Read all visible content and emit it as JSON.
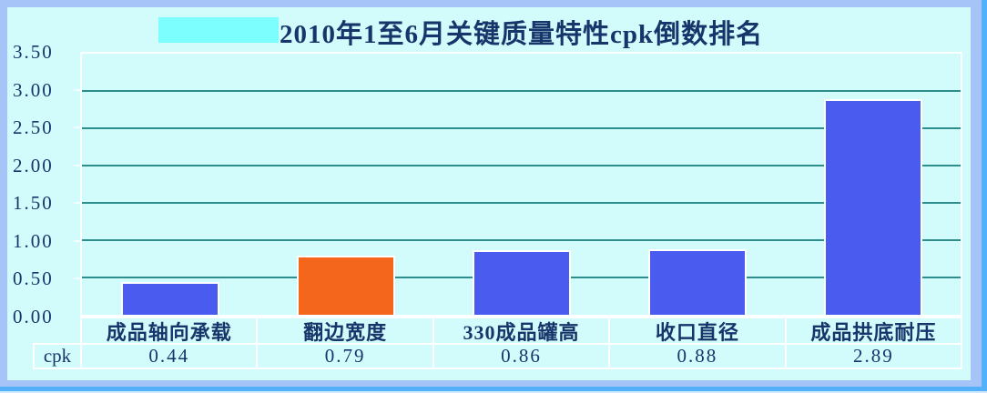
{
  "window": {
    "frame_color": "#a6c4f7",
    "panel_color": "#d2fbfb",
    "edge_accent_color": "#55b0fb"
  },
  "title": {
    "text": "2010年1至6月关键质量特性cpk倒数排名",
    "color": "#17356b",
    "highlight_color": "#7dfefe"
  },
  "chart_data": {
    "type": "bar",
    "title": "2010年1至6月关键质量特性cpk倒数排名",
    "categories": [
      "成品轴向承载",
      "翻边宽度",
      "330成品罐高",
      "收口直径",
      "成品拱底耐压"
    ],
    "series": [
      {
        "name": "cpk",
        "values": [
          0.44,
          0.79,
          0.86,
          0.88,
          2.89
        ]
      }
    ],
    "xlabel": "",
    "ylabel": "",
    "ylim": [
      0,
      3.5
    ],
    "ytick_interval": 0.5,
    "ytick_labels": [
      "3.50",
      "3.00",
      "2.50",
      "2.00",
      "1.50",
      "1.00",
      "0.50",
      "0.00"
    ],
    "grid": true,
    "gridline_color": "#2e8e8e",
    "bar_colors": [
      "#4a5cf0",
      "#f4661b",
      "#4a5cf0",
      "#4a5cf0",
      "#4a5cf0"
    ],
    "legend_position": "none",
    "data_table": {
      "row_label": "cpk",
      "values": [
        "0.44",
        "0.79",
        "0.86",
        "0.88",
        "2.89"
      ]
    }
  }
}
